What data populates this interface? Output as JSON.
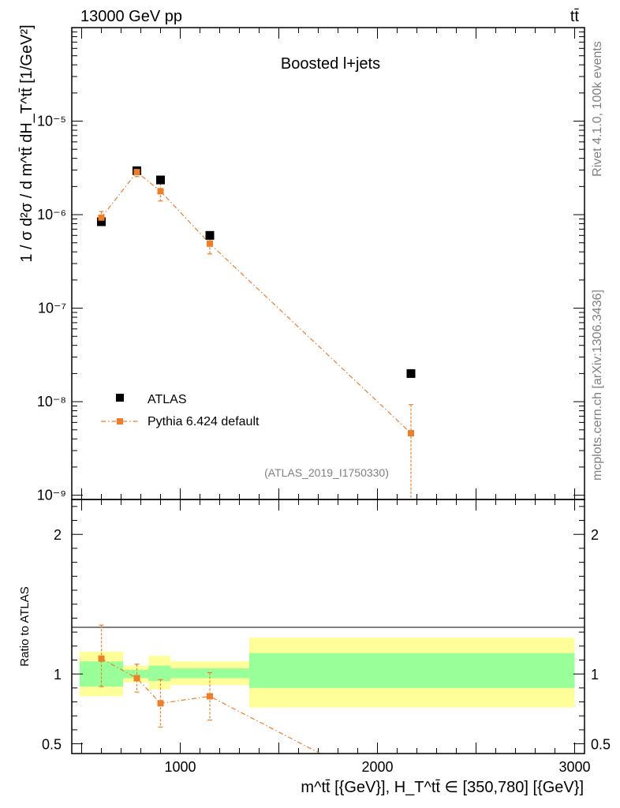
{
  "header": {
    "energy_label": "13000 GeV pp",
    "process_label": "tt̄"
  },
  "side_labels": {
    "rivet": "Rivet 4.1.0,  100k events",
    "mcplots": "mcplots.cern.ch [arXiv:1306.3436]"
  },
  "chart_data": [
    {
      "type": "scatter",
      "panel": "main",
      "title": "Boosted l+jets",
      "watermark": "(ATLAS_2019_I1750330)",
      "ylabel": "1 / σ d²σ / d m^tt̄ dH_T^tt̄ [1/GeV²]",
      "yscale": "log",
      "ylim": [
        9e-10,
        0.0001
      ],
      "xlim": [
        450,
        3050
      ],
      "y_tick_labels": [
        "10⁻⁹",
        "10⁻⁸",
        "10⁻⁷",
        "10⁻⁶",
        "10⁻⁵"
      ],
      "legend": [
        "ATLAS",
        "Pythia 6.424 default"
      ],
      "series": [
        {
          "name": "ATLAS",
          "color": "#000000",
          "x": [
            600,
            780,
            900,
            1150,
            2170
          ],
          "y": [
            8.4e-07,
            2.95e-06,
            2.35e-06,
            6e-07,
            2e-08
          ]
        },
        {
          "name": "Pythia 6.424 default",
          "color": "#f07d28",
          "x": [
            600,
            780,
            900,
            1150,
            2170
          ],
          "y": [
            9.3e-07,
            2.85e-06,
            1.78e-06,
            4.9e-07,
            4.6e-09
          ],
          "err_lo": [
            1.5e-07,
            3e-07,
            3.8e-07,
            1.1e-07,
            4e-09
          ],
          "err_hi": [
            1.5e-07,
            3e-07,
            3.8e-07,
            1.1e-07,
            4.7e-09
          ]
        }
      ]
    },
    {
      "type": "scatter",
      "panel": "ratio",
      "ylabel": "Ratio to ATLAS",
      "ylim": [
        0.43,
        2.25
      ],
      "y_ticks": [
        0.5,
        1,
        2
      ],
      "y_tick_labels": [
        "0.5",
        "1",
        "2"
      ],
      "xlabel": "m^tt̄ [{GeV}], H_T^tt̄ ∈ [350,780] [{GeV}]",
      "x_ticks": [
        1000,
        2000,
        3000
      ],
      "x_tick_labels": [
        "1000",
        "2000",
        "3000"
      ],
      "bands": [
        {
          "x0": 490,
          "x1": 710,
          "inner": [
            0.91,
            1.09
          ],
          "outer": [
            0.84,
            1.16
          ]
        },
        {
          "x0": 710,
          "x1": 840,
          "inner": [
            0.97,
            1.03
          ],
          "outer": [
            0.94,
            1.06
          ]
        },
        {
          "x0": 840,
          "x1": 950,
          "inner": [
            0.95,
            1.06
          ],
          "outer": [
            0.89,
            1.13
          ]
        },
        {
          "x0": 950,
          "x1": 1350,
          "inner": [
            0.97,
            1.04
          ],
          "outer": [
            0.92,
            1.09
          ]
        },
        {
          "x0": 1350,
          "x1": 3000,
          "inner": [
            0.9,
            1.15
          ],
          "outer": [
            0.76,
            1.26
          ]
        }
      ],
      "band_colors": {
        "inner": "#99ff99",
        "outer": "#ffff99"
      },
      "series": [
        {
          "name": "Pythia 6.424 default",
          "color": "#f07d28",
          "x": [
            600,
            780,
            900,
            1150,
            1710
          ],
          "y": [
            1.11,
            0.97,
            0.79,
            0.84,
            0.43
          ],
          "err_lo": [
            0.2,
            0.1,
            0.17,
            0.17,
            0
          ],
          "err_hi": [
            0.24,
            0.1,
            0.17,
            0.17,
            0
          ]
        }
      ]
    }
  ]
}
